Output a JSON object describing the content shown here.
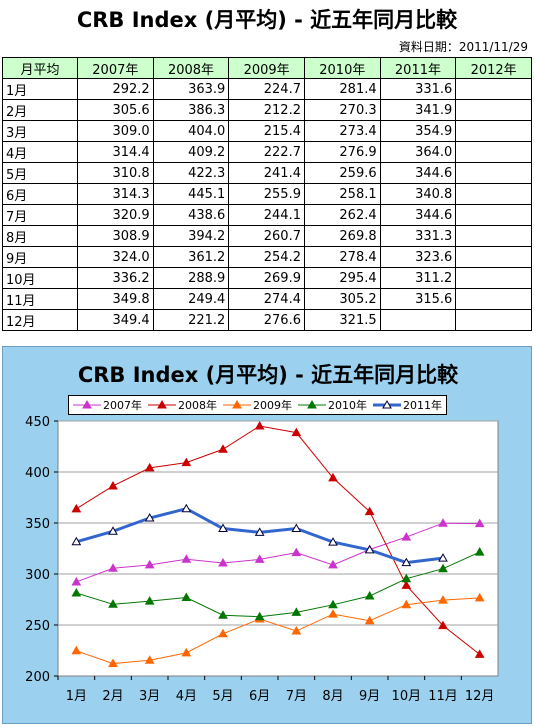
{
  "title": "CRB Index (月平均) - 近五年同月比較",
  "date_label": "資料日期：2011/11/29",
  "table": {
    "header": [
      "月平均",
      "2007年",
      "2008年",
      "2009年",
      "2010年",
      "2011年",
      "2012年"
    ],
    "rows": [
      [
        "1月",
        "292.2",
        "363.9",
        "224.7",
        "281.4",
        "331.6",
        ""
      ],
      [
        "2月",
        "305.6",
        "386.3",
        "212.2",
        "270.3",
        "341.9",
        ""
      ],
      [
        "3月",
        "309.0",
        "404.0",
        "215.4",
        "273.4",
        "354.9",
        ""
      ],
      [
        "4月",
        "314.4",
        "409.2",
        "222.7",
        "276.9",
        "364.0",
        ""
      ],
      [
        "5月",
        "310.8",
        "422.3",
        "241.4",
        "259.6",
        "344.6",
        ""
      ],
      [
        "6月",
        "314.3",
        "445.1",
        "255.9",
        "258.1",
        "340.8",
        ""
      ],
      [
        "7月",
        "320.9",
        "438.6",
        "244.1",
        "262.4",
        "344.6",
        ""
      ],
      [
        "8月",
        "308.9",
        "394.2",
        "260.7",
        "269.8",
        "331.3",
        ""
      ],
      [
        "9月",
        "324.0",
        "361.2",
        "254.2",
        "278.4",
        "323.6",
        ""
      ],
      [
        "10月",
        "336.2",
        "288.9",
        "269.9",
        "295.4",
        "311.2",
        ""
      ],
      [
        "11月",
        "349.8",
        "249.4",
        "274.4",
        "305.2",
        "315.6",
        ""
      ],
      [
        "12月",
        "349.4",
        "221.2",
        "276.6",
        "321.5",
        "",
        ""
      ]
    ]
  },
  "chart_data": {
    "type": "line",
    "title": "CRB Index (月平均) - 近五年同月比較",
    "categories": [
      "1月",
      "2月",
      "3月",
      "4月",
      "5月",
      "6月",
      "7月",
      "8月",
      "9月",
      "10月",
      "11月",
      "12月"
    ],
    "ylim": [
      200,
      450
    ],
    "yticks": [
      200,
      250,
      300,
      350,
      400,
      450
    ],
    "grid": true,
    "legend_position": "top",
    "series": [
      {
        "name": "2007年",
        "color": "#cc33cc",
        "marker": "triangle-filled",
        "values": [
          292.2,
          305.6,
          309.0,
          314.4,
          310.8,
          314.3,
          320.9,
          308.9,
          324.0,
          336.2,
          349.8,
          349.4
        ]
      },
      {
        "name": "2008年",
        "color": "#cc0000",
        "marker": "triangle-filled",
        "values": [
          363.9,
          386.3,
          404.0,
          409.2,
          422.3,
          445.1,
          438.6,
          394.2,
          361.2,
          288.9,
          249.4,
          221.2
        ]
      },
      {
        "name": "2009年",
        "color": "#ff6600",
        "marker": "triangle-filled",
        "values": [
          224.7,
          212.2,
          215.4,
          222.7,
          241.4,
          255.9,
          244.1,
          260.7,
          254.2,
          269.9,
          274.4,
          276.6
        ]
      },
      {
        "name": "2010年",
        "color": "#007700",
        "marker": "triangle-filled",
        "values": [
          281.4,
          270.3,
          273.4,
          276.9,
          259.6,
          258.1,
          262.4,
          269.8,
          278.4,
          295.4,
          305.2,
          321.5
        ]
      },
      {
        "name": "2011年",
        "color": "#3366cc",
        "marker": "triangle-open",
        "values": [
          331.6,
          341.9,
          354.9,
          364.0,
          344.6,
          340.8,
          344.6,
          331.3,
          323.6,
          311.2,
          315.6,
          null
        ]
      }
    ]
  }
}
